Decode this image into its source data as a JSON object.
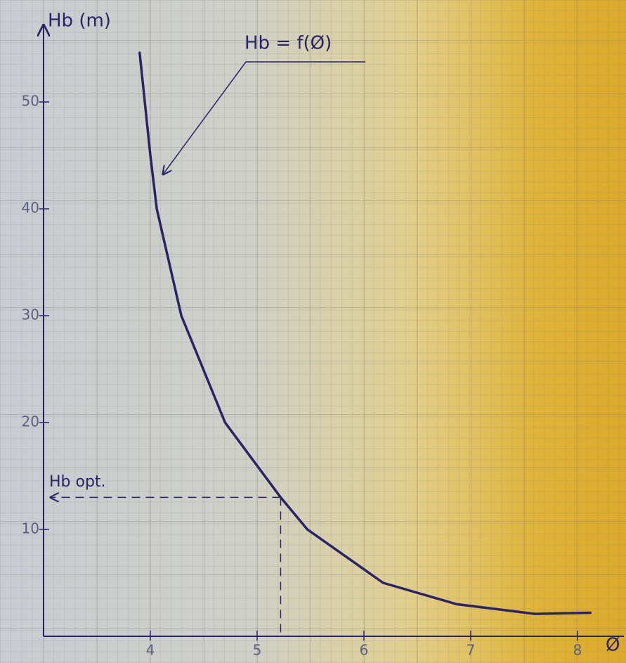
{
  "chart_data": {
    "type": "line",
    "y_label": "Hb (m)",
    "x_label": "Ø",
    "annotation": "Hb = f(Ø)",
    "optimum_label": "Hb opt.",
    "x": [
      3.9,
      4.0,
      4.06,
      4.29,
      4.7,
      5.22,
      5.47,
      6.18,
      6.87,
      7.6,
      8.12
    ],
    "series": [
      {
        "name": "Hb = f(Ø)",
        "color": "#2a2466",
        "values": [
          54.6,
          45,
          40,
          30,
          20,
          13,
          10,
          5,
          3,
          2.1,
          2.2
        ]
      }
    ],
    "optimum": {
      "x": 5.22,
      "y": 13
    },
    "xlim": [
      3,
      8.4
    ],
    "ylim": [
      0,
      57
    ],
    "xticks": [
      4,
      5,
      6,
      7,
      8
    ],
    "yticks": [
      10,
      20,
      30,
      40,
      50
    ],
    "grid": true
  }
}
